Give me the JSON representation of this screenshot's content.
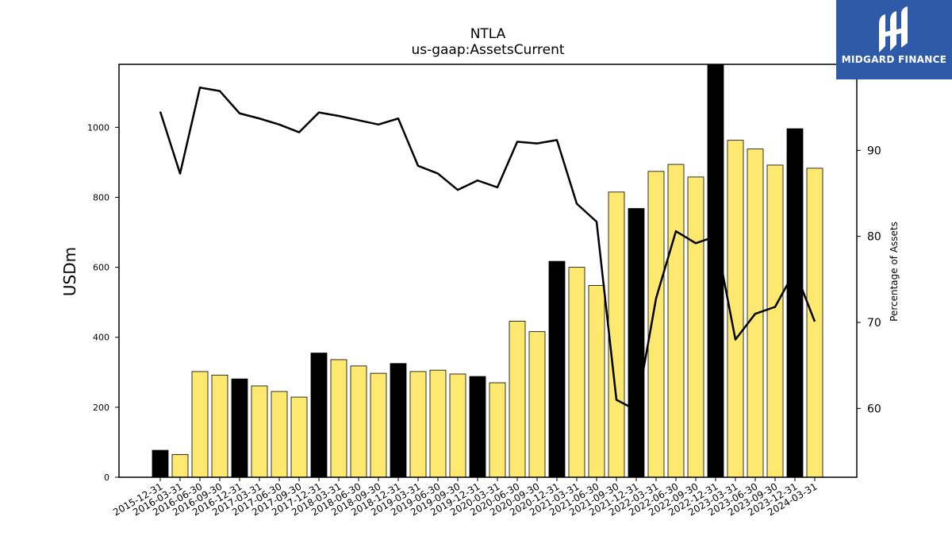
{
  "chart_data": {
    "type": "bar",
    "title": "NTLA",
    "subtitle": "us-gaap:AssetsCurrent",
    "ylabel": "USDm",
    "y2label": "Percentage of Assets",
    "ylim": [
      0,
      1180
    ],
    "y2lim": [
      52,
      100
    ],
    "yticks": [
      0,
      200,
      400,
      600,
      800,
      1000
    ],
    "y2ticks": [
      60,
      70,
      80,
      90
    ],
    "categories": [
      "2015-12-31",
      "2016-03-31",
      "2016-06-30",
      "2016-09-30",
      "2016-12-31",
      "2017-03-31",
      "2017-06-30",
      "2017-09-30",
      "2017-12-31",
      "2018-03-31",
      "2018-06-30",
      "2018-09-30",
      "2018-12-31",
      "2019-03-31",
      "2019-06-30",
      "2019-09-30",
      "2019-12-31",
      "2020-03-31",
      "2020-06-30",
      "2020-09-30",
      "2020-12-31",
      "2021-03-31",
      "2021-06-30",
      "2021-09-30",
      "2021-12-31",
      "2022-03-31",
      "2022-06-30",
      "2022-09-30",
      "2022-12-31",
      "2023-03-31",
      "2023-06-30",
      "2023-09-30",
      "2023-12-31",
      "2024-03-31"
    ],
    "series": [
      {
        "values": [
          77,
          65,
          302,
          292,
          281,
          261,
          245,
          229,
          355,
          336,
          318,
          297,
          325,
          302,
          306,
          295,
          288,
          270,
          446,
          416,
          617,
          600,
          548,
          815,
          768,
          874,
          894,
          858,
          1185,
          963,
          938,
          892,
          996,
          883
        ],
        "highlight": [
          true,
          false,
          false,
          false,
          true,
          false,
          false,
          false,
          true,
          false,
          false,
          false,
          true,
          false,
          false,
          false,
          true,
          false,
          false,
          false,
          true,
          false,
          false,
          false,
          true,
          false,
          false,
          false,
          true,
          false,
          false,
          false,
          true,
          false
        ]
      },
      {
        "axis": "right",
        "type": "line",
        "values": [
          94.5,
          87.3,
          97.3,
          96.9,
          94.3,
          93.7,
          93.0,
          92.1,
          94.4,
          94.0,
          93.5,
          93.0,
          93.7,
          88.2,
          87.3,
          85.4,
          86.5,
          85.7,
          91.0,
          90.8,
          91.2,
          83.8,
          81.7,
          61.0,
          59.8,
          72.8,
          80.6,
          79.2,
          80.0,
          68.0,
          71.0,
          71.8,
          76.0,
          70.1
        ]
      }
    ],
    "colors": {
      "bar": "#fde96f",
      "bar_highlight": "#000000",
      "bar_edge": "#000000",
      "line": "#000000"
    }
  },
  "brand": {
    "name": "MIDGARD FINANCE",
    "color": "#2f5aa8"
  }
}
